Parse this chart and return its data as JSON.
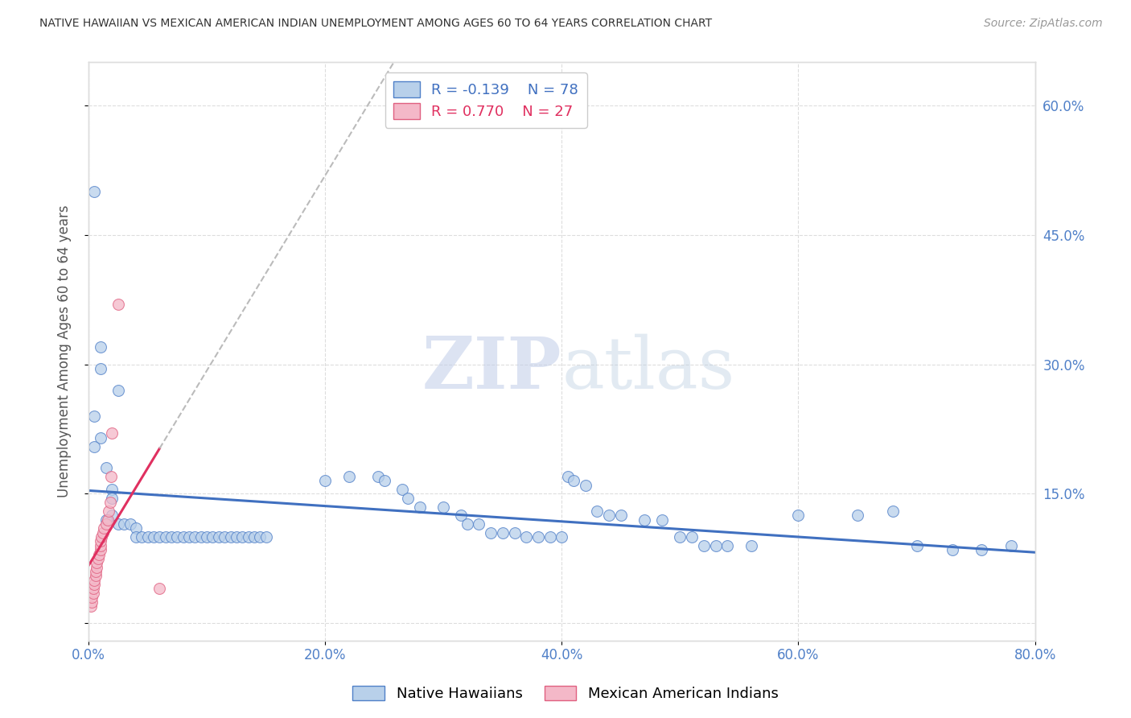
{
  "title": "NATIVE HAWAIIAN VS MEXICAN AMERICAN INDIAN UNEMPLOYMENT AMONG AGES 60 TO 64 YEARS CORRELATION CHART",
  "source": "Source: ZipAtlas.com",
  "ylabel": "Unemployment Among Ages 60 to 64 years",
  "xlim": [
    0.0,
    0.8
  ],
  "ylim": [
    -0.02,
    0.65
  ],
  "xticks": [
    0.0,
    0.2,
    0.4,
    0.6,
    0.8
  ],
  "yticks": [
    0.0,
    0.15,
    0.3,
    0.45,
    0.6
  ],
  "xticklabels": [
    "0.0%",
    "20.0%",
    "40.0%",
    "60.0%",
    "80.0%"
  ],
  "yticklabels_right": [
    "",
    "15.0%",
    "30.0%",
    "45.0%",
    "60.0%"
  ],
  "blue_R": -0.139,
  "blue_N": 78,
  "pink_R": 0.77,
  "pink_N": 27,
  "legend_label_blue": "Native Hawaiians",
  "legend_label_pink": "Mexican American Indians",
  "blue_fill": "#b8d0ea",
  "pink_fill": "#f4b8c8",
  "blue_edge": "#5080c8",
  "pink_edge": "#e06080",
  "blue_line": "#4070c0",
  "pink_line": "#e03060",
  "gray_dash": "#bbbbbb",
  "blue_scatter": [
    [
      0.005,
      0.5
    ],
    [
      0.01,
      0.32
    ],
    [
      0.01,
      0.295
    ],
    [
      0.005,
      0.24
    ],
    [
      0.01,
      0.215
    ],
    [
      0.005,
      0.205
    ],
    [
      0.015,
      0.18
    ],
    [
      0.02,
      0.155
    ],
    [
      0.02,
      0.145
    ],
    [
      0.02,
      0.125
    ],
    [
      0.015,
      0.12
    ],
    [
      0.025,
      0.115
    ],
    [
      0.03,
      0.115
    ],
    [
      0.035,
      0.115
    ],
    [
      0.04,
      0.11
    ],
    [
      0.04,
      0.1
    ],
    [
      0.045,
      0.1
    ],
    [
      0.05,
      0.1
    ],
    [
      0.055,
      0.1
    ],
    [
      0.06,
      0.1
    ],
    [
      0.065,
      0.1
    ],
    [
      0.07,
      0.1
    ],
    [
      0.075,
      0.1
    ],
    [
      0.08,
      0.1
    ],
    [
      0.085,
      0.1
    ],
    [
      0.09,
      0.1
    ],
    [
      0.095,
      0.1
    ],
    [
      0.1,
      0.1
    ],
    [
      0.105,
      0.1
    ],
    [
      0.11,
      0.1
    ],
    [
      0.115,
      0.1
    ],
    [
      0.12,
      0.1
    ],
    [
      0.125,
      0.1
    ],
    [
      0.13,
      0.1
    ],
    [
      0.135,
      0.1
    ],
    [
      0.14,
      0.1
    ],
    [
      0.145,
      0.1
    ],
    [
      0.15,
      0.1
    ],
    [
      0.025,
      0.27
    ],
    [
      0.2,
      0.165
    ],
    [
      0.22,
      0.17
    ],
    [
      0.245,
      0.17
    ],
    [
      0.25,
      0.165
    ],
    [
      0.265,
      0.155
    ],
    [
      0.27,
      0.145
    ],
    [
      0.28,
      0.135
    ],
    [
      0.3,
      0.135
    ],
    [
      0.315,
      0.125
    ],
    [
      0.32,
      0.115
    ],
    [
      0.33,
      0.115
    ],
    [
      0.34,
      0.105
    ],
    [
      0.35,
      0.105
    ],
    [
      0.36,
      0.105
    ],
    [
      0.37,
      0.1
    ],
    [
      0.38,
      0.1
    ],
    [
      0.39,
      0.1
    ],
    [
      0.4,
      0.1
    ],
    [
      0.405,
      0.17
    ],
    [
      0.41,
      0.165
    ],
    [
      0.42,
      0.16
    ],
    [
      0.43,
      0.13
    ],
    [
      0.44,
      0.125
    ],
    [
      0.45,
      0.125
    ],
    [
      0.47,
      0.12
    ],
    [
      0.485,
      0.12
    ],
    [
      0.5,
      0.1
    ],
    [
      0.51,
      0.1
    ],
    [
      0.52,
      0.09
    ],
    [
      0.53,
      0.09
    ],
    [
      0.54,
      0.09
    ],
    [
      0.56,
      0.09
    ],
    [
      0.6,
      0.125
    ],
    [
      0.65,
      0.125
    ],
    [
      0.68,
      0.13
    ],
    [
      0.7,
      0.09
    ],
    [
      0.73,
      0.085
    ],
    [
      0.755,
      0.085
    ],
    [
      0.78,
      0.09
    ]
  ],
  "pink_scatter": [
    [
      0.002,
      0.02
    ],
    [
      0.003,
      0.025
    ],
    [
      0.003,
      0.03
    ],
    [
      0.004,
      0.035
    ],
    [
      0.004,
      0.04
    ],
    [
      0.005,
      0.045
    ],
    [
      0.005,
      0.05
    ],
    [
      0.006,
      0.055
    ],
    [
      0.006,
      0.06
    ],
    [
      0.007,
      0.065
    ],
    [
      0.007,
      0.07
    ],
    [
      0.008,
      0.075
    ],
    [
      0.009,
      0.08
    ],
    [
      0.01,
      0.085
    ],
    [
      0.01,
      0.09
    ],
    [
      0.01,
      0.095
    ],
    [
      0.011,
      0.1
    ],
    [
      0.012,
      0.105
    ],
    [
      0.013,
      0.11
    ],
    [
      0.015,
      0.115
    ],
    [
      0.016,
      0.12
    ],
    [
      0.017,
      0.13
    ],
    [
      0.018,
      0.14
    ],
    [
      0.019,
      0.17
    ],
    [
      0.02,
      0.22
    ],
    [
      0.025,
      0.37
    ],
    [
      0.06,
      0.04
    ]
  ],
  "watermark_zip": "ZIP",
  "watermark_atlas": "atlas",
  "background_color": "#ffffff",
  "grid_color": "#dddddd",
  "tick_label_color": "#5080c8",
  "axis_color": "#dddddd",
  "title_color": "#333333",
  "ylabel_color": "#555555",
  "source_color": "#999999",
  "legend_text_blue": "#4070c0",
  "legend_text_pink": "#e03060"
}
